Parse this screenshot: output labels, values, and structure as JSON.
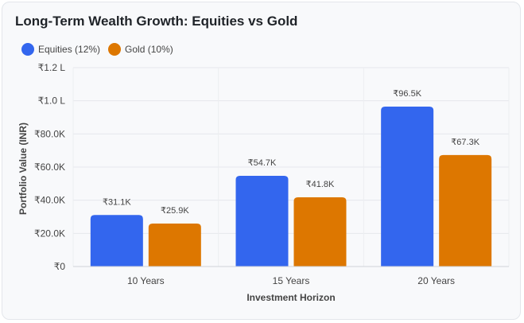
{
  "chart_data": {
    "type": "bar",
    "title": "Long-Term Wealth Growth: Equities vs Gold",
    "xlabel": "Investment Horizon",
    "ylabel": "Portfolio Value (INR)",
    "categories": [
      "10 Years",
      "15 Years",
      "20 Years"
    ],
    "series": [
      {
        "name": "Equities (12%)",
        "color": "#3366ee",
        "values": [
          31058,
          54736,
          96463
        ],
        "labels": [
          "₹31.1K",
          "₹54.7K",
          "₹96.5K"
        ]
      },
      {
        "name": "Gold (10%)",
        "color": "#dd7700",
        "values": [
          25937,
          41772,
          67275
        ],
        "labels": [
          "₹25.9K",
          "₹41.8K",
          "₹67.3K"
        ]
      }
    ],
    "ylim": [
      0,
      120000
    ],
    "yticks": [
      {
        "value": 0,
        "label": "₹0"
      },
      {
        "value": 20000,
        "label": "₹20.0K"
      },
      {
        "value": 40000,
        "label": "₹40.0K"
      },
      {
        "value": 60000,
        "label": "₹60.0K"
      },
      {
        "value": 80000,
        "label": "₹80.0K"
      },
      {
        "value": 100000,
        "label": "₹1.0 L"
      },
      {
        "value": 120000,
        "label": "₹1.2 L"
      }
    ],
    "grid": true,
    "legend_position": "top-left"
  }
}
